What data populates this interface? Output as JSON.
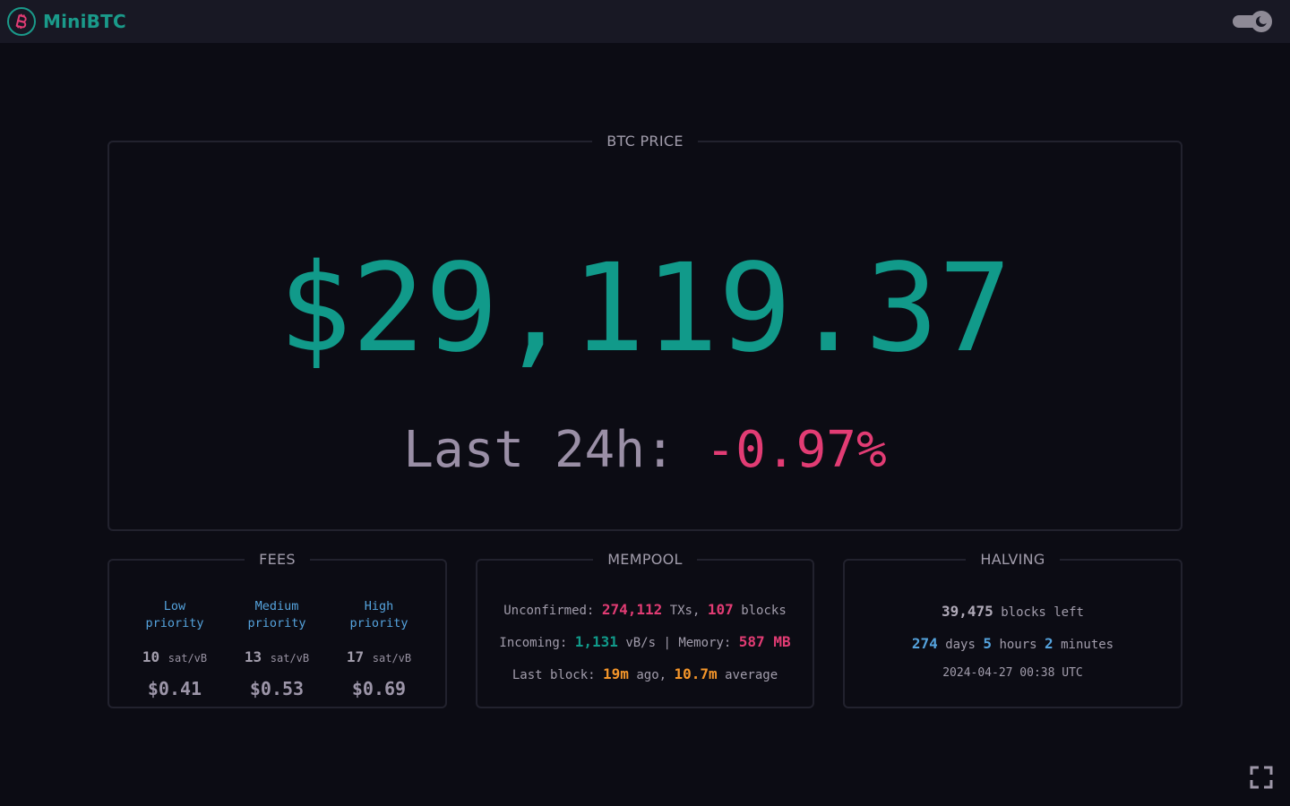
{
  "navbar": {
    "brand": "MiniBTC",
    "logo_icon": "bitcoin-icon",
    "theme_toggle_icon": "moon-icon"
  },
  "colors": {
    "accent": "#119a8a",
    "negative": "#e23c74",
    "info": "#55a3dd",
    "warning": "#f5962a",
    "background": "#0c0c14"
  },
  "price": {
    "legend": "BTC PRICE",
    "value": "$29,119.37",
    "change_label": "Last 24h:",
    "change_value": "-0.97%"
  },
  "fees": {
    "legend": "FEES",
    "tiers": [
      {
        "label_1": "Low",
        "label_2": "priority",
        "rate": "10",
        "unit": "sat/vB",
        "usd": "$0.41"
      },
      {
        "label_1": "Medium",
        "label_2": "priority",
        "rate": "13",
        "unit": "sat/vB",
        "usd": "$0.53"
      },
      {
        "label_1": "High",
        "label_2": "priority",
        "rate": "17",
        "unit": "sat/vB",
        "usd": "$0.69"
      }
    ]
  },
  "mempool": {
    "legend": "MEMPOOL",
    "unconfirmed_label": "Unconfirmed:",
    "txs": "274,112",
    "txs_unit": "TXs,",
    "blocks": "107",
    "blocks_unit": "blocks",
    "incoming_label": "Incoming:",
    "incoming": "1,131",
    "incoming_unit": "vB/s |",
    "memory_label": "Memory:",
    "memory": "587 MB",
    "last_block_label": "Last block:",
    "last_block": "19m",
    "ago": "ago,",
    "average": "10.7m",
    "average_label": "average"
  },
  "halving": {
    "legend": "HALVING",
    "blocks_left": "39,475",
    "blocks_left_label": "blocks left",
    "days": "274",
    "days_label": "days",
    "hours": "5",
    "hours_label": "hours",
    "minutes": "2",
    "minutes_label": "minutes",
    "date": "2024-04-27 00:38 UTC"
  },
  "footer": {
    "fullscreen_icon": "fullscreen-icon"
  }
}
